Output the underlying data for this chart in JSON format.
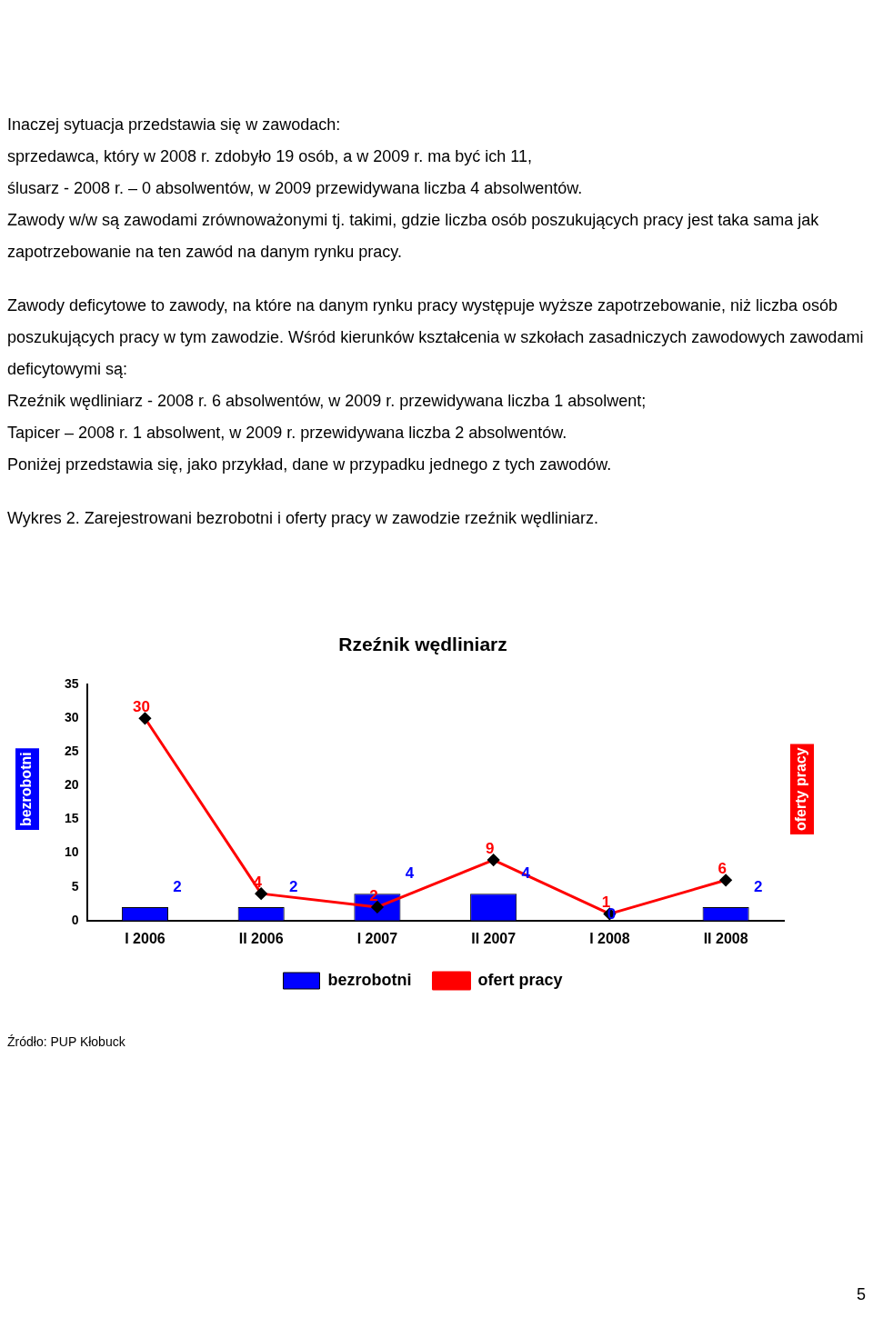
{
  "chart_data": {
    "type": "bar",
    "title": "Rzeźnik wędliniarz",
    "ylabel": "bezrobotni",
    "y2label": "oferty pracy",
    "categories": [
      "I 2006",
      "II 2006",
      "I 2007",
      "II 2007",
      "I 2008",
      "II 2008"
    ],
    "series": [
      {
        "name": "bezrobotni",
        "color": "#0000ff",
        "values": [
          2,
          2,
          4,
          4,
          0,
          2
        ]
      },
      {
        "name": "ofert pracy",
        "type": "line",
        "color": "#ff0000",
        "values": [
          30,
          4,
          2,
          9,
          1,
          6
        ]
      }
    ],
    "ylim": [
      0,
      35
    ],
    "yticks": [
      0,
      5,
      10,
      15,
      20,
      25,
      30,
      35
    ],
    "grid": false,
    "legend": "bottom",
    "marker": "diamond",
    "data_labels": true,
    "annotations": [
      "Inaczej sytuacja przedstawia się w zawodach:",
      "sprzedawca, który w 2008 r. zdobyło 19 osób, a w 2009 r. ma być ich  11,",
      "ślusarz - 2008 r. – 0 absolwentów, w 2009 przewidywana liczba 4 absolwentów.",
      "Zawody w/w są zawodami zrównoważonymi tj. takimi, gdzie liczba osób poszukujących pracy jest taka sama jak zapotrzebowanie na ten zawód na danym rynku pracy.",
      "Zawody deficytowe to zawody, na które na danym rynku pracy występuje wyższe zapotrzebowanie, niż liczba osób poszukujących pracy w tym zawodzie. Wśród kierunków kształcenia w szkołach zasadniczych zawodowych zawodami deficytowymi  są:",
      "Rzeźnik wędliniarz  - 2008 r. 6 absolwentów, w 2009 r. przewidywana liczba 1 absolwent;",
      "Tapicer – 2008 r. 1 absolwent, w 2009 r. przewidywana liczba 2 absolwentów.",
      "Poniżej przedstawia się, jako przykład, dane w przypadku jednego z tych zawodów.",
      "Wykres 2. Zarejestrowani bezrobotni i oferty pracy w zawodzie rzeźnik wędliniarz.",
      "Źródło: PUP Kłobuck",
      "5"
    ]
  }
}
